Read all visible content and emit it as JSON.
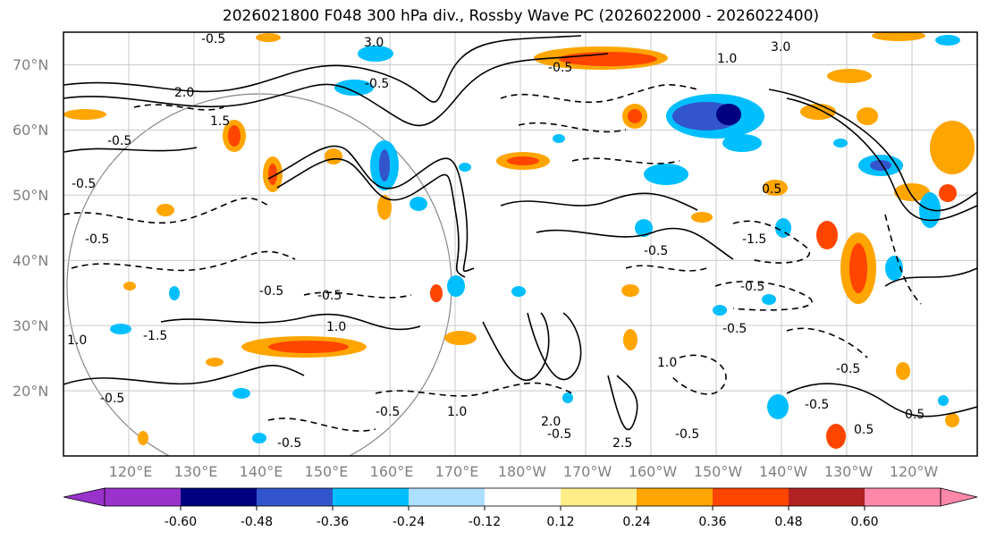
{
  "title": "2026021800 F048 300 hPa div., Rossby Wave PC (2026022000 - 2026022400)",
  "map": {
    "lat_labels": [
      "70°N",
      "60°N",
      "50°N",
      "40°N",
      "30°N",
      "20°N"
    ],
    "lon_labels": [
      "120°E",
      "130°E",
      "140°E",
      "150°E",
      "160°E",
      "170°E",
      "180°W",
      "170°W",
      "160°W",
      "150°W",
      "140°W",
      "130°W",
      "120°W"
    ],
    "lat_range": [
      10,
      75
    ],
    "lon_range_east": [
      110,
      250
    ],
    "contour_labels": [
      "3.0",
      "-0.5",
      "-0.5",
      "3.0",
      "-0.5",
      "1.0",
      "2.0",
      "-0.5",
      "1.5",
      "-0.5",
      "-0.5",
      "1.0",
      "-0.5",
      "-0.5",
      "1.0",
      "-0.5",
      "-1.5",
      "1.0",
      "-0.5",
      "-1.5",
      "-0.5",
      "-0.5",
      "0.5",
      "0.5",
      "0.5",
      "-0.5",
      "-0.5",
      "2.0",
      "-0.5",
      "2.5",
      "1.0",
      "-0.5",
      "-0.5",
      "-0.5"
    ]
  },
  "colorbar": {
    "colors": [
      "#9933CC",
      "#000080",
      "#3355CC",
      "#00BFFF",
      "#ADDFFF",
      "#FFFFFF",
      "#FFEE88",
      "#FFA500",
      "#FF4500",
      "#B22222",
      "#FF88AA"
    ],
    "tick_labels": [
      "-0.60",
      "-0.48",
      "-0.36",
      "-0.24",
      "-0.12",
      "0.12",
      "0.24",
      "0.36",
      "0.48",
      "0.60"
    ]
  }
}
